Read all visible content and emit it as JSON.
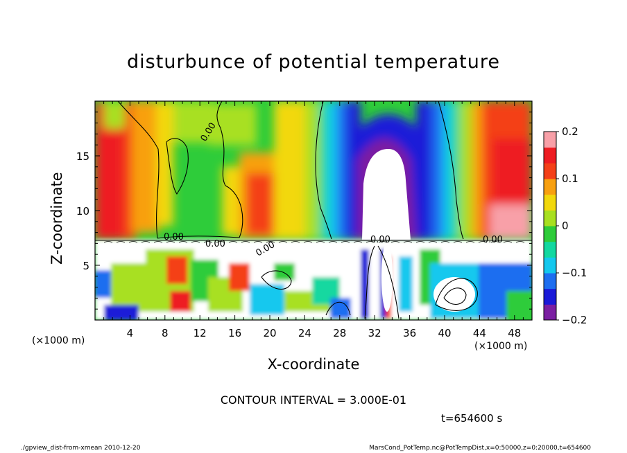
{
  "chart_data": {
    "type": "heatmap",
    "title": "disturbunce of potential temperature",
    "xlabel": "X-coordinate",
    "ylabel": "Z-coordinate",
    "x_unit_left": "(×1000 m)",
    "x_unit_right": "(×1000 m)",
    "xlim": [
      0,
      50
    ],
    "ylim": [
      0,
      20
    ],
    "x_ticks": [
      "4",
      "8",
      "12",
      "16",
      "20",
      "24",
      "28",
      "32",
      "36",
      "40",
      "44",
      "48"
    ],
    "x_tick_values": [
      4,
      8,
      12,
      16,
      20,
      24,
      28,
      32,
      36,
      40,
      44,
      48
    ],
    "y_ticks": [
      "5",
      "10",
      "15"
    ],
    "y_tick_values": [
      5,
      10,
      15
    ],
    "colorbar": {
      "min": -0.2,
      "max": 0.2,
      "tick_labels": [
        "0.2",
        "0.1",
        "0",
        "−0.1",
        "−0.2"
      ],
      "tick_values": [
        0.2,
        0.1,
        0,
        -0.1,
        -0.2
      ]
    },
    "contour_labels": [
      "0.00",
      "0.00",
      "0.00",
      "0.00",
      "0.00",
      "0.00"
    ],
    "contour_interval_text": "CONTOUR INTERVAL = 3.000E-01",
    "time_text": "t=654600 s",
    "footer_left": "./gpview_dist-from-xmean  2010-12-20",
    "footer_right": "MarsCond_PotTemp.nc@PotTempDist,x=0:50000,z=0:20000,t=654600",
    "colors": {
      "scale": [
        "#7b1fa2",
        "#1a1ad8",
        "#1e6ef0",
        "#14c8ee",
        "#12d8a0",
        "#2ecc3a",
        "#a8e020",
        "#f2d80c",
        "#f8a010",
        "#f44018",
        "#ee1c22",
        "#f8a0a8"
      ]
    }
  }
}
